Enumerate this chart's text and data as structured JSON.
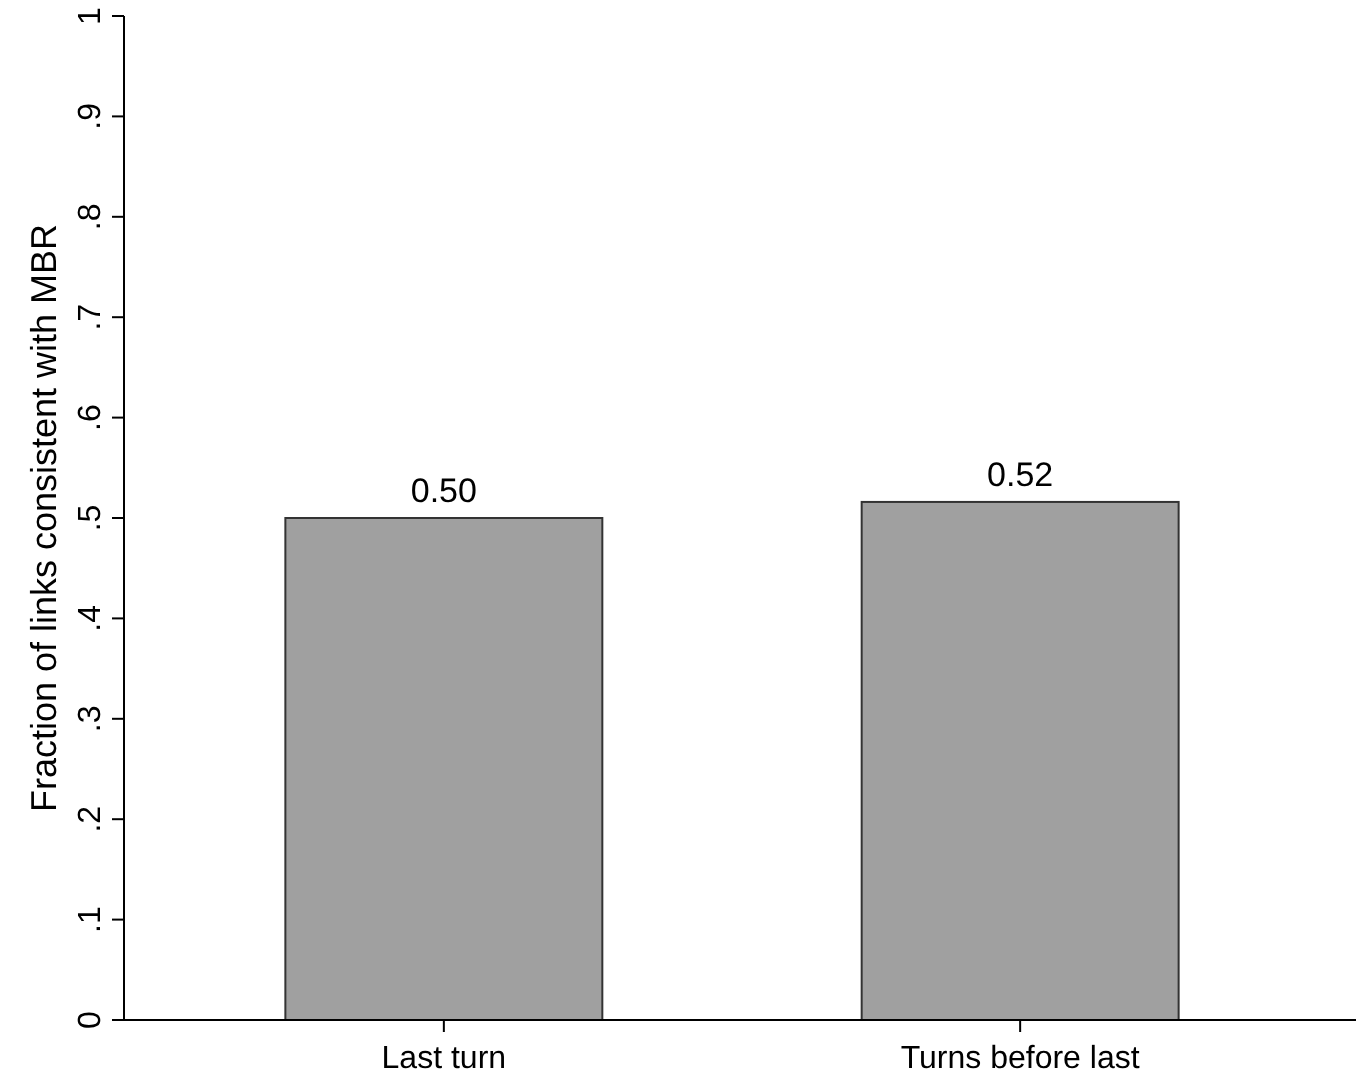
{
  "chart_data": {
    "type": "bar",
    "ylabel": "Fraction of links consistent with MBR",
    "categories": [
      "Last turn",
      "Turns before last"
    ],
    "values": [
      0.5,
      0.516
    ],
    "value_labels": [
      "0.50",
      "0.52"
    ],
    "color": "#a0a0a0",
    "ylim": [
      0,
      1
    ],
    "yticks": [
      0,
      {
        "value": 0.1,
        "label": ".1"
      },
      {
        "value": 0.2,
        "label": ".2"
      },
      {
        "value": 0.3,
        "label": ".3"
      },
      {
        "value": 0.4,
        "label": ".4"
      },
      {
        "value": 0.5,
        "label": ".5"
      },
      {
        "value": 0.6,
        "label": ".6"
      },
      {
        "value": 0.7,
        "label": ".7"
      },
      {
        "value": 0.8,
        "label": ".8"
      },
      {
        "value": 0.9,
        "label": ".9"
      },
      1
    ],
    "grid": false
  }
}
